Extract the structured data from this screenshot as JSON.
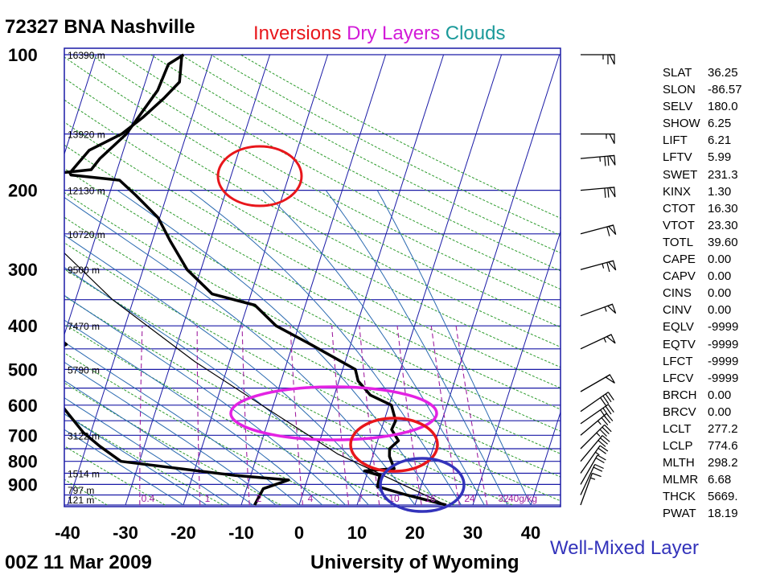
{
  "header": {
    "station": "72327 BNA Nashville",
    "date": "00Z 11 Mar 2009",
    "source": "University of Wyoming"
  },
  "legend": [
    {
      "label": "Inversions",
      "color": "#e8161b"
    },
    {
      "label": "Dry Layers",
      "color": "#d21bd8"
    },
    {
      "label": "Clouds",
      "color": "#1b9a9a"
    }
  ],
  "annotation": {
    "well_mixed_label": "Well-Mixed Layer",
    "color": "#3333bb"
  },
  "colors": {
    "isobar": "#1a1aa6",
    "isotherm": "#1a1aa6",
    "dry_adiabat": "#2b9a2b",
    "moist_adiabat": "#2a6ab0",
    "mixing_ratio": "#a020a0",
    "profile": "#000000",
    "inversion_circle": "#e8161b",
    "dry_layer_ellipse": "#e322e3",
    "well_mixed_circle": "#3333bb"
  },
  "chart_data": {
    "type": "line",
    "chart_kind": "skew-t log-p sounding",
    "x_ticks": [
      -40,
      -30,
      -20,
      -10,
      0,
      10,
      20,
      30,
      40
    ],
    "p_ticks": [
      100,
      200,
      300,
      400,
      500,
      600,
      700,
      800,
      900
    ],
    "xlim": [
      -40,
      40
    ],
    "plim": [
      1000,
      100
    ],
    "height_labels": [
      {
        "p": 100,
        "label": "16390 m"
      },
      {
        "p": 150,
        "label": "13920 m"
      },
      {
        "p": 200,
        "label": "12130 m"
      },
      {
        "p": 250,
        "label": "10720 m"
      },
      {
        "p": 300,
        "label": "9500 m"
      },
      {
        "p": 400,
        "label": "7470 m"
      },
      {
        "p": 500,
        "label": "5790 m"
      },
      {
        "p": 700,
        "label": "3122 m"
      },
      {
        "p": 850,
        "label": "1514 m"
      },
      {
        "p": 925,
        "label": "797 m"
      },
      {
        "p": 1000,
        "label": "121 m"
      }
    ],
    "mixing_ratio_labels": [
      "0.4",
      "1",
      "2",
      "4",
      "7",
      "10",
      "16",
      "24",
      "32",
      "40g/kg"
    ],
    "series": [
      {
        "role": "temperature",
        "points": [
          [
            25.4,
            1000
          ],
          [
            18.0,
            950
          ],
          [
            12.5,
            910
          ],
          [
            12.3,
            860
          ],
          [
            9.4,
            840
          ],
          [
            14.4,
            830
          ],
          [
            12.9,
            780
          ],
          [
            12.5,
            750
          ],
          [
            13.6,
            720
          ],
          [
            11.8,
            680
          ],
          [
            12.0,
            650
          ],
          [
            10.4,
            600
          ],
          [
            6.2,
            570
          ],
          [
            3.3,
            530
          ],
          [
            2.2,
            500
          ],
          [
            -6.9,
            440
          ],
          [
            -13.9,
            400
          ],
          [
            -18.7,
            360
          ],
          [
            -26.7,
            340
          ],
          [
            -32.4,
            300
          ],
          [
            -36.8,
            260
          ],
          [
            -40.3,
            230
          ],
          [
            -45.4,
            205
          ],
          [
            -49.0,
            190
          ],
          [
            -57.7,
            185
          ],
          [
            -58.0,
            183
          ],
          [
            -55.9,
            163
          ],
          [
            -51.2,
            150
          ],
          [
            -48.5,
            138
          ],
          [
            -45.9,
            125
          ],
          [
            -44.1,
            115
          ],
          [
            -45.2,
            100
          ]
        ]
      },
      {
        "role": "dewpoint",
        "points": [
          [
            -7.7,
            1000
          ],
          [
            -7.1,
            920
          ],
          [
            -3.2,
            880
          ],
          [
            -12.6,
            860
          ],
          [
            -33.2,
            800
          ],
          [
            -37.7,
            740
          ],
          [
            -41.3,
            690
          ],
          [
            -46.6,
            600
          ],
          [
            -51.2,
            500
          ],
          [
            -53.1,
            470
          ],
          [
            -49.1,
            440
          ],
          [
            -52.3,
            415
          ],
          [
            -56.5,
            400
          ],
          [
            -58.9,
            370
          ],
          [
            -59.6,
            360
          ],
          [
            -56.7,
            350
          ],
          [
            -58.8,
            330
          ],
          [
            -60.1,
            300
          ],
          [
            -64.1,
            250
          ],
          [
            -68.2,
            200
          ],
          [
            -71.3,
            190
          ],
          [
            -54.5,
            180
          ],
          [
            -53.6,
            170
          ],
          [
            -50.4,
            150
          ],
          [
            -47.4,
            120
          ],
          [
            -47.0,
            105
          ],
          [
            -44.9,
            100
          ]
        ]
      },
      {
        "role": "parcel",
        "points": [
          [
            25.4,
            1000
          ],
          [
            3.8,
            770
          ],
          [
            -12.0,
            600
          ],
          [
            -26.0,
            480
          ],
          [
            -43.6,
            350
          ],
          [
            -59.0,
            250
          ],
          [
            -72.3,
            180
          ],
          [
            -90.1,
            100
          ]
        ]
      }
    ],
    "indices": [
      {
        "name": "SLAT",
        "value": "36.25"
      },
      {
        "name": "SLON",
        "value": "-86.57"
      },
      {
        "name": "SELV",
        "value": "180.0"
      },
      {
        "name": "SHOW",
        "value": "6.25"
      },
      {
        "name": "LIFT",
        "value": "6.21"
      },
      {
        "name": "LFTV",
        "value": "5.99"
      },
      {
        "name": "SWET",
        "value": "231.3"
      },
      {
        "name": "KINX",
        "value": "1.30"
      },
      {
        "name": "CTOT",
        "value": "16.30"
      },
      {
        "name": "VTOT",
        "value": "23.30"
      },
      {
        "name": "TOTL",
        "value": "39.60"
      },
      {
        "name": "CAPE",
        "value": "0.00"
      },
      {
        "name": "CAPV",
        "value": "0.00"
      },
      {
        "name": "CINS",
        "value": "0.00"
      },
      {
        "name": "CINV",
        "value": "0.00"
      },
      {
        "name": "EQLV",
        "value": "-9999"
      },
      {
        "name": "EQTV",
        "value": "-9999"
      },
      {
        "name": "LFCT",
        "value": "-9999"
      },
      {
        "name": "LFCV",
        "value": "-9999"
      },
      {
        "name": "BRCH",
        "value": "0.00"
      },
      {
        "name": "BRCV",
        "value": "0.00"
      },
      {
        "name": "LCLT",
        "value": "277.2"
      },
      {
        "name": "LCLP",
        "value": "774.6"
      },
      {
        "name": "MLTH",
        "value": "298.2"
      },
      {
        "name": "MLMR",
        "value": "6.68"
      },
      {
        "name": "THCK",
        "value": "5669."
      },
      {
        "name": "PWAT",
        "value": "18.19"
      }
    ],
    "wind_barbs": [
      {
        "p": 100,
        "dir_deg": 270,
        "speed_kt": 65
      },
      {
        "p": 150,
        "dir_deg": 270,
        "speed_kt": 55
      },
      {
        "p": 170,
        "dir_deg": 265,
        "speed_kt": 75
      },
      {
        "p": 200,
        "dir_deg": 265,
        "speed_kt": 70
      },
      {
        "p": 250,
        "dir_deg": 255,
        "speed_kt": 60
      },
      {
        "p": 300,
        "dir_deg": 255,
        "speed_kt": 65
      },
      {
        "p": 380,
        "dir_deg": 250,
        "speed_kt": 55
      },
      {
        "p": 450,
        "dir_deg": 245,
        "speed_kt": 55
      },
      {
        "p": 560,
        "dir_deg": 240,
        "speed_kt": 50
      },
      {
        "p": 620,
        "dir_deg": 235,
        "speed_kt": 40
      },
      {
        "p": 660,
        "dir_deg": 235,
        "speed_kt": 40
      },
      {
        "p": 700,
        "dir_deg": 230,
        "speed_kt": 35
      },
      {
        "p": 750,
        "dir_deg": 225,
        "speed_kt": 35
      },
      {
        "p": 800,
        "dir_deg": 220,
        "speed_kt": 30
      },
      {
        "p": 850,
        "dir_deg": 215,
        "speed_kt": 25
      },
      {
        "p": 900,
        "dir_deg": 210,
        "speed_kt": 20
      },
      {
        "p": 950,
        "dir_deg": 205,
        "speed_kt": 20
      },
      {
        "p": 1000,
        "dir_deg": 200,
        "speed_kt": 15
      }
    ]
  }
}
